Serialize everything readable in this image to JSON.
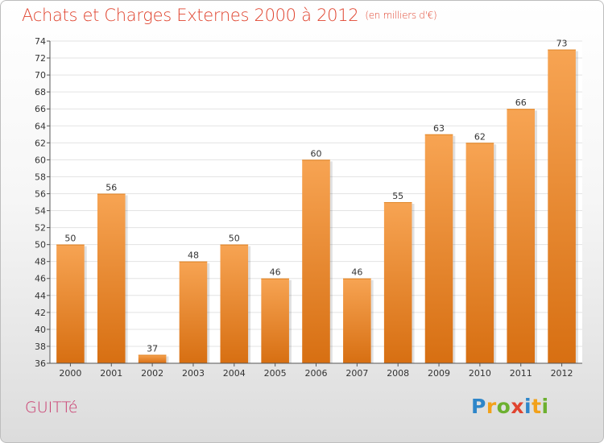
{
  "header": {
    "title": "Achats et Charges Externes 2000 à 2012",
    "subtitle": "(en milliers d'€)"
  },
  "footer": {
    "commune": "GUITTé",
    "logo": {
      "letters": [
        {
          "char": "P",
          "color": "#2e86c9"
        },
        {
          "char": "r",
          "color": "#f2a11a"
        },
        {
          "char": "o",
          "color": "#6cb02f"
        },
        {
          "char": "x",
          "color": "#e0442f"
        },
        {
          "char": "i",
          "color": "#2e86c9"
        },
        {
          "char": "t",
          "color": "#f2a11a"
        },
        {
          "char": "i",
          "color": "#6cb02f"
        }
      ]
    }
  },
  "colors": {
    "bar_top": "#f7a453",
    "bar_bottom": "#d76f12",
    "title": "#e0442f",
    "commune": "#c9356a"
  },
  "chart_data": {
    "type": "bar",
    "title": "Achats et Charges Externes 2000 à 2012",
    "subtitle": "(en milliers d'€)",
    "xlabel": "",
    "ylabel": "",
    "categories": [
      "2000",
      "2001",
      "2002",
      "2003",
      "2004",
      "2005",
      "2006",
      "2007",
      "2008",
      "2009",
      "2010",
      "2011",
      "2012"
    ],
    "values": [
      50,
      56,
      37,
      48,
      50,
      46,
      60,
      46,
      55,
      63,
      62,
      66,
      73
    ],
    "ylim": [
      36,
      74
    ],
    "yticks": [
      36,
      38,
      40,
      42,
      44,
      46,
      48,
      50,
      52,
      54,
      56,
      58,
      60,
      62,
      64,
      66,
      68,
      70,
      72,
      74
    ],
    "grid": true,
    "legend": "none"
  }
}
